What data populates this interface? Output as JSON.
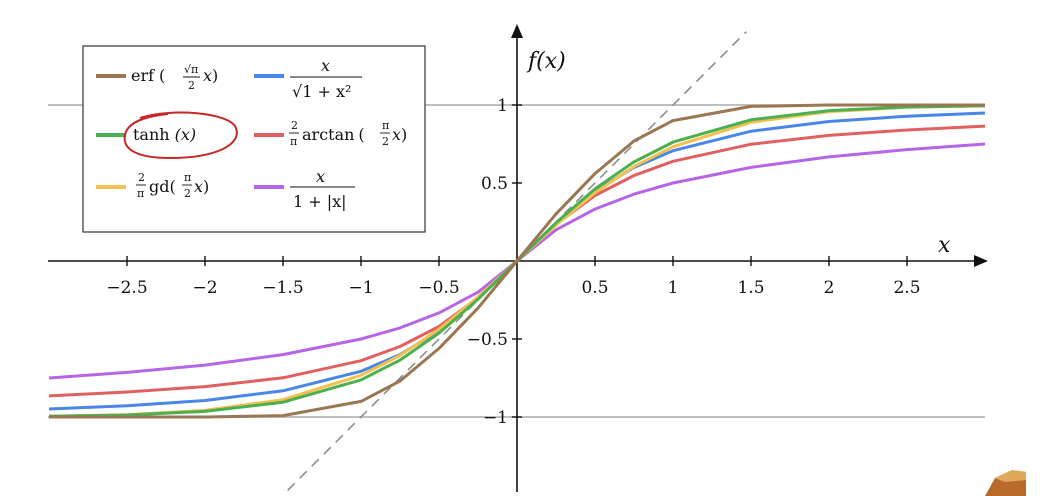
{
  "chart_data": {
    "type": "line",
    "title": "",
    "xlabel": "x",
    "ylabel": "f(x)",
    "xlim": [
      -3.0,
      3.0
    ],
    "ylim": [
      -1.5,
      1.5
    ],
    "x_ticks": [
      -2.5,
      -2,
      -1.5,
      -1,
      -0.5,
      0.5,
      1,
      1.5,
      2,
      2.5
    ],
    "x_tick_labels": [
      "−2.5",
      "−2",
      "−1.5",
      "−1",
      "−0.5",
      "0.5",
      "1",
      "1.5",
      "2",
      "2.5"
    ],
    "y_ticks": [
      1,
      0.5,
      -0.5,
      -1
    ],
    "y_tick_labels": [
      "1",
      "0.5",
      "−0.5",
      "−1"
    ],
    "grid": false,
    "legend_position": "top-left",
    "reference_lines": [
      {
        "kind": "horizontal",
        "y": 1,
        "color": "#aaaaaa"
      },
      {
        "kind": "horizontal",
        "y": -1,
        "color": "#aaaaaa"
      },
      {
        "kind": "diagonal-dashed",
        "slope": 1,
        "intercept": 0,
        "color": "#888888"
      }
    ],
    "series": [
      {
        "key": "erf",
        "color": "#9b7653",
        "x": [
          -3,
          -2.5,
          -2,
          -1.5,
          -1,
          -0.75,
          -0.5,
          -0.25,
          0,
          0.25,
          0.5,
          0.75,
          1,
          1.5,
          2,
          2.5,
          3
        ],
        "y": [
          -1.0,
          -1.0,
          -1.0,
          -0.991,
          -0.9,
          -0.769,
          -0.56,
          -0.302,
          0,
          0.302,
          0.56,
          0.769,
          0.9,
          0.991,
          1.0,
          1.0,
          1.0
        ]
      },
      {
        "key": "tanh",
        "color": "#4caf50",
        "x": [
          -3,
          -2.5,
          -2,
          -1.5,
          -1,
          -0.75,
          -0.5,
          -0.25,
          0,
          0.25,
          0.5,
          0.75,
          1,
          1.5,
          2,
          2.5,
          3
        ],
        "y": [
          -0.995,
          -0.987,
          -0.964,
          -0.905,
          -0.762,
          -0.635,
          -0.462,
          -0.245,
          0,
          0.245,
          0.462,
          0.635,
          0.762,
          0.905,
          0.964,
          0.987,
          0.995
        ]
      },
      {
        "key": "gd",
        "color": "#f2c14e",
        "x": [
          -3,
          -2.5,
          -2,
          -1.5,
          -1,
          -0.75,
          -0.5,
          -0.25,
          0,
          0.25,
          0.5,
          0.75,
          1,
          1.5,
          2,
          2.5,
          3
        ],
        "y": [
          -0.994,
          -0.985,
          -0.958,
          -0.889,
          -0.733,
          -0.606,
          -0.437,
          -0.23,
          0,
          0.23,
          0.437,
          0.606,
          0.733,
          0.889,
          0.958,
          0.985,
          0.994
        ]
      },
      {
        "key": "sqrt",
        "color": "#4a86e8",
        "x": [
          -3,
          -2.5,
          -2,
          -1.5,
          -1,
          -0.75,
          -0.5,
          -0.25,
          0,
          0.25,
          0.5,
          0.75,
          1,
          1.5,
          2,
          2.5,
          3
        ],
        "y": [
          -0.949,
          -0.928,
          -0.894,
          -0.832,
          -0.707,
          -0.6,
          -0.447,
          -0.243,
          0,
          0.243,
          0.447,
          0.6,
          0.707,
          0.832,
          0.894,
          0.928,
          0.949
        ]
      },
      {
        "key": "arctan",
        "color": "#e06060",
        "x": [
          -3,
          -2.5,
          -2,
          -1.5,
          -1,
          -0.75,
          -0.5,
          -0.25,
          0,
          0.25,
          0.5,
          0.75,
          1,
          1.5,
          2,
          2.5,
          3
        ],
        "y": [
          -0.865,
          -0.84,
          -0.805,
          -0.749,
          -0.639,
          -0.548,
          -0.42,
          -0.236,
          0,
          0.236,
          0.42,
          0.548,
          0.639,
          0.749,
          0.805,
          0.84,
          0.865
        ]
      },
      {
        "key": "abs",
        "color": "#b565e6",
        "x": [
          -3,
          -2.5,
          -2,
          -1.5,
          -1,
          -0.75,
          -0.5,
          -0.25,
          0,
          0.25,
          0.5,
          0.75,
          1,
          1.5,
          2,
          2.5,
          3
        ],
        "y": [
          -0.75,
          -0.714,
          -0.667,
          -0.6,
          -0.5,
          -0.429,
          -0.333,
          -0.2,
          0,
          0.2,
          0.333,
          0.429,
          0.5,
          0.6,
          0.667,
          0.714,
          0.75
        ]
      }
    ],
    "legend": {
      "erf": {
        "name": "erf",
        "lparen": "(",
        "sqrt_pi": "√π",
        "two": "2",
        "x": "x",
        "rparen": ")"
      },
      "sqrt": {
        "num": "x",
        "den": "√1 + x²"
      },
      "tanh": {
        "name": "tanh",
        "arg": "(x)"
      },
      "arctan": {
        "two": "2",
        "pi": "π",
        "name": "arctan",
        "lparen": "(",
        "pi2": "π",
        "two2": "2",
        "x": "x",
        "rparen": ")"
      },
      "gd": {
        "two": "2",
        "pi": "π",
        "name": "gd",
        "lparen": "(",
        "pi2": "π",
        "two2": "2",
        "x": "x",
        "rparen": ")"
      },
      "abs": {
        "num": "x",
        "den": "1 + |x|"
      }
    },
    "annotation": {
      "kind": "hand-drawn circle",
      "target": "tanh legend entry",
      "color": "#c62828"
    }
  }
}
